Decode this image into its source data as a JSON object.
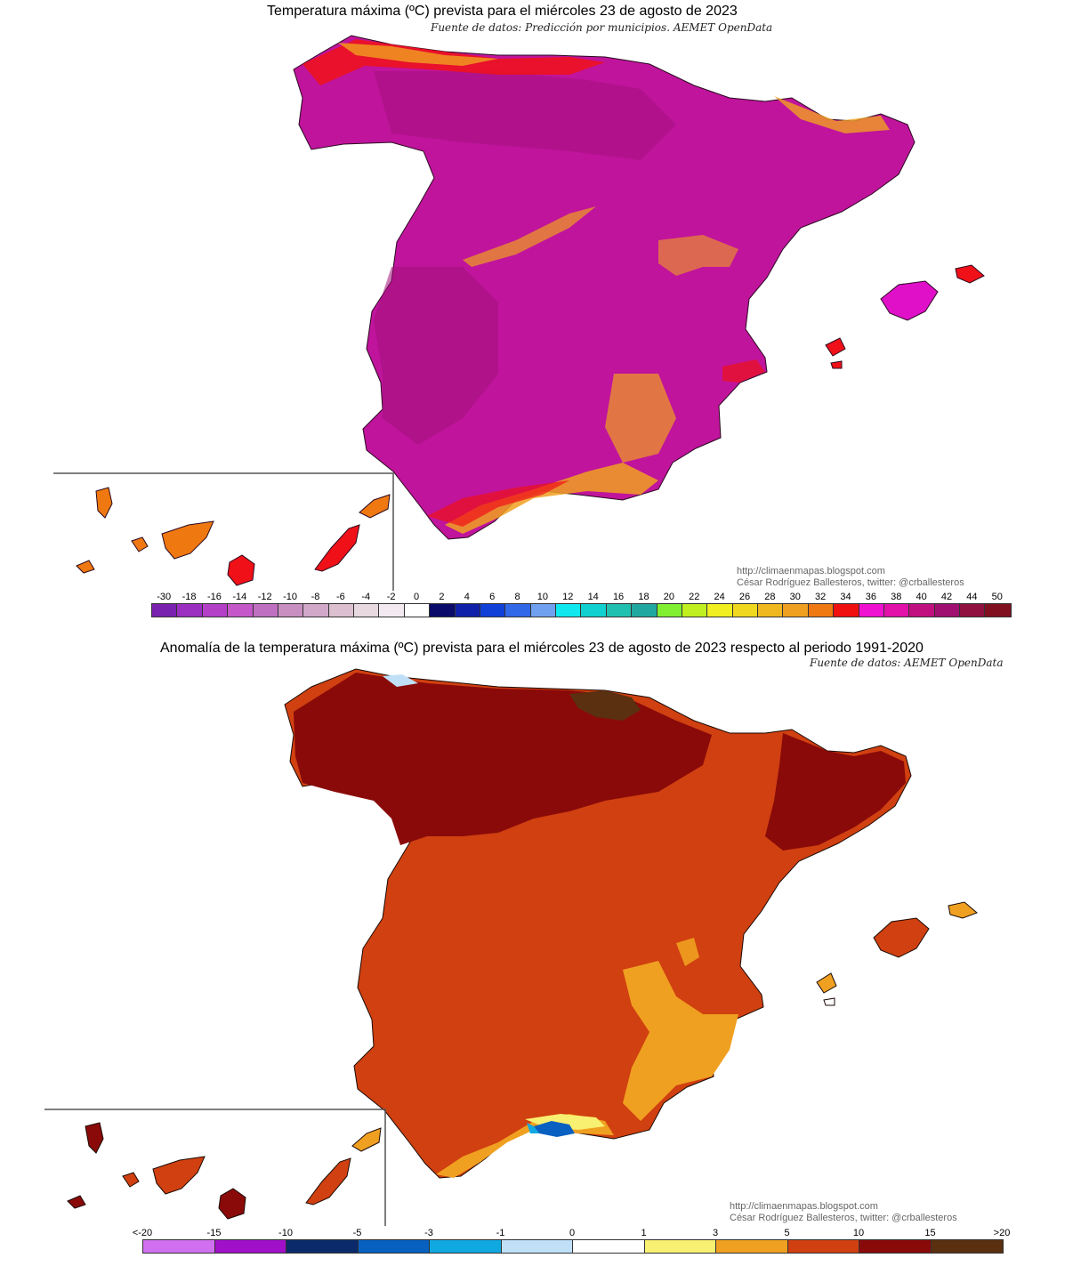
{
  "map1": {
    "title": "Temperatura máxima (ºC) prevista para el miércoles 23 de agosto de 2023",
    "source": "Fuente de datos: Predicción por municipios. AEMET OpenData",
    "credit_url": "http://climaenmapas.blogspot.com",
    "credit_author": "César Rodríguez Ballesteros, twitter: @crballesteros",
    "scale_labels": [
      "-30",
      "-18",
      "-16",
      "-14",
      "-12",
      "-10",
      "-8",
      "-6",
      "-4",
      "-2",
      "0",
      "2",
      "4",
      "6",
      "8",
      "10",
      "12",
      "14",
      "16",
      "18",
      "20",
      "22",
      "24",
      "26",
      "28",
      "30",
      "32",
      "34",
      "36",
      "38",
      "40",
      "42",
      "44",
      "50"
    ],
    "scale_colors": [
      "#7a22b0",
      "#9a2fc0",
      "#b440c8",
      "#c458c8",
      "#c070c0",
      "#c890c0",
      "#d0a8c8",
      "#dcc0d0",
      "#e8d8e0",
      "#f2eaf0",
      "#ffffff",
      "#0a0a6a",
      "#1020a8",
      "#1040d8",
      "#3068e8",
      "#70a0f0",
      "#10e8f0",
      "#10d0d0",
      "#20c0b0",
      "#20a8a0",
      "#80f030",
      "#c0f020",
      "#f0f020",
      "#f0d820",
      "#f0b820",
      "#f0a020",
      "#f07810",
      "#f01010",
      "#f010d0",
      "#e010a8",
      "#c01080",
      "#a01070",
      "#901040",
      "#801020"
    ]
  },
  "map2": {
    "title": "Anomalía de la temperatura máxima (ºC) prevista para el miércoles 23 de agosto de 2023 respecto al periodo 1991-2020",
    "source": "Fuente de datos: AEMET OpenData",
    "credit_url": "http://climaenmapas.blogspot.com",
    "credit_author": "César Rodríguez Ballesteros, twitter: @crballesteros",
    "scale_labels": [
      "<-20",
      "-15",
      "-10",
      "-5",
      "-3",
      "-1",
      "0",
      "1",
      "3",
      "5",
      "10",
      "15",
      ">20"
    ],
    "scale_colors": [
      "#d070f0",
      "#a010c8",
      "#0a2a6a",
      "#0860c0",
      "#10a8e0",
      "#c0e0f8",
      "#ffffff",
      "#f8f070",
      "#f0a020",
      "#d04010",
      "#8a0a0a",
      "#5a3010"
    ]
  },
  "colors": {
    "map1_land": "#c0149c",
    "map1_land_dark": "#a0107a",
    "map1_hot_coast": "#f01018",
    "map1_warm_coast": "#f0a020",
    "map2_land": "#d04010",
    "map2_land_dark": "#8a0a0a",
    "map2_cool_coast": "#f0a020",
    "map2_cold_spot": "#0860c0"
  }
}
